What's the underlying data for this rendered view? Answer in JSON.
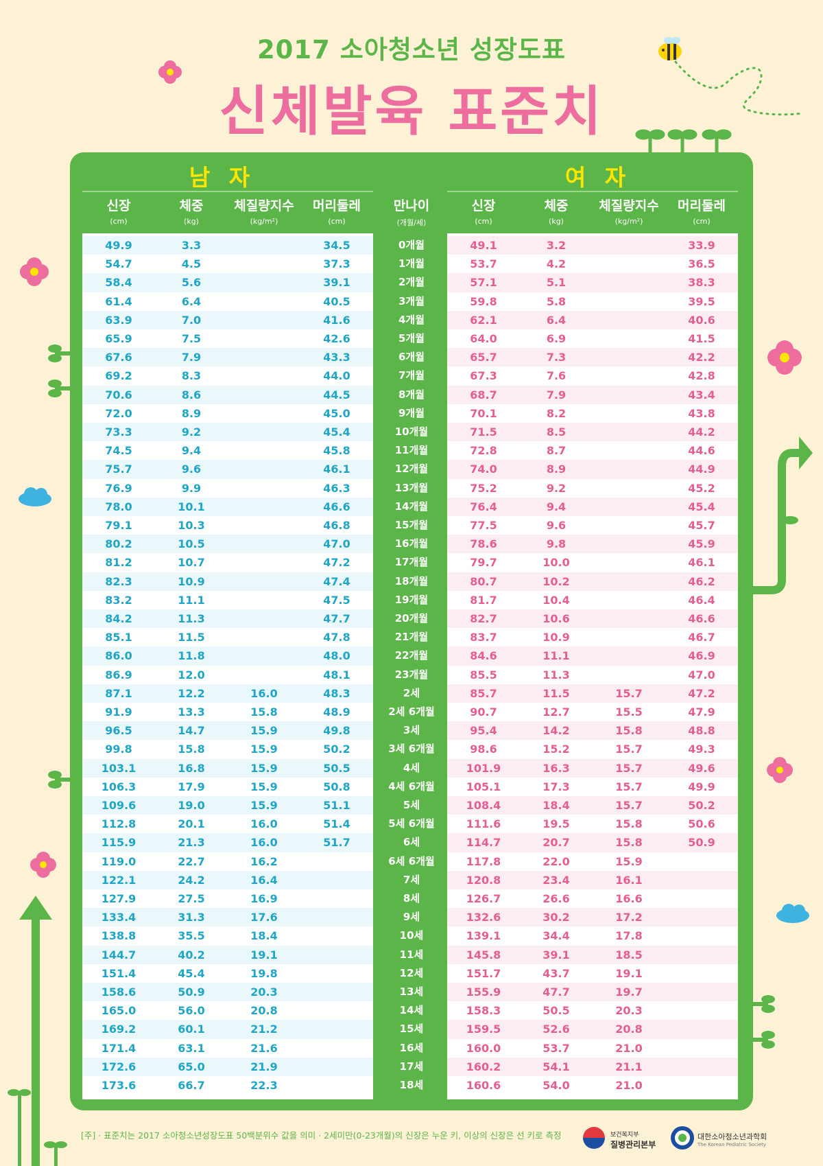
{
  "header": {
    "subtitle": "2017 소아청소년 성장도표",
    "title": "신체발육 표준치"
  },
  "sections": {
    "boys": "남 자",
    "girls": "여 자"
  },
  "columns": {
    "height": {
      "label": "신장",
      "unit": "(cm)"
    },
    "weight": {
      "label": "체중",
      "unit": "(kg)"
    },
    "bmi": {
      "label": "체질량지수",
      "unit": "(kg/m²)"
    },
    "head": {
      "label": "머리둘레",
      "unit": "(cm)"
    },
    "age": {
      "label": "만나이",
      "unit": "(개월/세)"
    }
  },
  "ages": [
    "0개월",
    "1개월",
    "2개월",
    "3개월",
    "4개월",
    "5개월",
    "6개월",
    "7개월",
    "8개월",
    "9개월",
    "10개월",
    "11개월",
    "12개월",
    "13개월",
    "14개월",
    "15개월",
    "16개월",
    "17개월",
    "18개월",
    "19개월",
    "20개월",
    "21개월",
    "22개월",
    "23개월",
    "2세",
    "2세 6개월",
    "3세",
    "3세 6개월",
    "4세",
    "4세 6개월",
    "5세",
    "5세 6개월",
    "6세",
    "6세 6개월",
    "7세",
    "8세",
    "9세",
    "10세",
    "11세",
    "12세",
    "13세",
    "14세",
    "15세",
    "16세",
    "17세",
    "18세"
  ],
  "boys": [
    [
      "49.9",
      "3.3",
      "",
      "34.5"
    ],
    [
      "54.7",
      "4.5",
      "",
      "37.3"
    ],
    [
      "58.4",
      "5.6",
      "",
      "39.1"
    ],
    [
      "61.4",
      "6.4",
      "",
      "40.5"
    ],
    [
      "63.9",
      "7.0",
      "",
      "41.6"
    ],
    [
      "65.9",
      "7.5",
      "",
      "42.6"
    ],
    [
      "67.6",
      "7.9",
      "",
      "43.3"
    ],
    [
      "69.2",
      "8.3",
      "",
      "44.0"
    ],
    [
      "70.6",
      "8.6",
      "",
      "44.5"
    ],
    [
      "72.0",
      "8.9",
      "",
      "45.0"
    ],
    [
      "73.3",
      "9.2",
      "",
      "45.4"
    ],
    [
      "74.5",
      "9.4",
      "",
      "45.8"
    ],
    [
      "75.7",
      "9.6",
      "",
      "46.1"
    ],
    [
      "76.9",
      "9.9",
      "",
      "46.3"
    ],
    [
      "78.0",
      "10.1",
      "",
      "46.6"
    ],
    [
      "79.1",
      "10.3",
      "",
      "46.8"
    ],
    [
      "80.2",
      "10.5",
      "",
      "47.0"
    ],
    [
      "81.2",
      "10.7",
      "",
      "47.2"
    ],
    [
      "82.3",
      "10.9",
      "",
      "47.4"
    ],
    [
      "83.2",
      "11.1",
      "",
      "47.5"
    ],
    [
      "84.2",
      "11.3",
      "",
      "47.7"
    ],
    [
      "85.1",
      "11.5",
      "",
      "47.8"
    ],
    [
      "86.0",
      "11.8",
      "",
      "48.0"
    ],
    [
      "86.9",
      "12.0",
      "",
      "48.1"
    ],
    [
      "87.1",
      "12.2",
      "16.0",
      "48.3"
    ],
    [
      "91.9",
      "13.3",
      "15.8",
      "48.9"
    ],
    [
      "96.5",
      "14.7",
      "15.9",
      "49.8"
    ],
    [
      "99.8",
      "15.8",
      "15.9",
      "50.2"
    ],
    [
      "103.1",
      "16.8",
      "15.9",
      "50.5"
    ],
    [
      "106.3",
      "17.9",
      "15.9",
      "50.8"
    ],
    [
      "109.6",
      "19.0",
      "15.9",
      "51.1"
    ],
    [
      "112.8",
      "20.1",
      "16.0",
      "51.4"
    ],
    [
      "115.9",
      "21.3",
      "16.0",
      "51.7"
    ],
    [
      "119.0",
      "22.7",
      "16.2",
      ""
    ],
    [
      "122.1",
      "24.2",
      "16.4",
      ""
    ],
    [
      "127.9",
      "27.5",
      "16.9",
      ""
    ],
    [
      "133.4",
      "31.3",
      "17.6",
      ""
    ],
    [
      "138.8",
      "35.5",
      "18.4",
      ""
    ],
    [
      "144.7",
      "40.2",
      "19.1",
      ""
    ],
    [
      "151.4",
      "45.4",
      "19.8",
      ""
    ],
    [
      "158.6",
      "50.9",
      "20.3",
      ""
    ],
    [
      "165.0",
      "56.0",
      "20.8",
      ""
    ],
    [
      "169.2",
      "60.1",
      "21.2",
      ""
    ],
    [
      "171.4",
      "63.1",
      "21.6",
      ""
    ],
    [
      "172.6",
      "65.0",
      "21.9",
      ""
    ],
    [
      "173.6",
      "66.7",
      "22.3",
      ""
    ]
  ],
  "girls": [
    [
      "49.1",
      "3.2",
      "",
      "33.9"
    ],
    [
      "53.7",
      "4.2",
      "",
      "36.5"
    ],
    [
      "57.1",
      "5.1",
      "",
      "38.3"
    ],
    [
      "59.8",
      "5.8",
      "",
      "39.5"
    ],
    [
      "62.1",
      "6.4",
      "",
      "40.6"
    ],
    [
      "64.0",
      "6.9",
      "",
      "41.5"
    ],
    [
      "65.7",
      "7.3",
      "",
      "42.2"
    ],
    [
      "67.3",
      "7.6",
      "",
      "42.8"
    ],
    [
      "68.7",
      "7.9",
      "",
      "43.4"
    ],
    [
      "70.1",
      "8.2",
      "",
      "43.8"
    ],
    [
      "71.5",
      "8.5",
      "",
      "44.2"
    ],
    [
      "72.8",
      "8.7",
      "",
      "44.6"
    ],
    [
      "74.0",
      "8.9",
      "",
      "44.9"
    ],
    [
      "75.2",
      "9.2",
      "",
      "45.2"
    ],
    [
      "76.4",
      "9.4",
      "",
      "45.4"
    ],
    [
      "77.5",
      "9.6",
      "",
      "45.7"
    ],
    [
      "78.6",
      "9.8",
      "",
      "45.9"
    ],
    [
      "79.7",
      "10.0",
      "",
      "46.1"
    ],
    [
      "80.7",
      "10.2",
      "",
      "46.2"
    ],
    [
      "81.7",
      "10.4",
      "",
      "46.4"
    ],
    [
      "82.7",
      "10.6",
      "",
      "46.6"
    ],
    [
      "83.7",
      "10.9",
      "",
      "46.7"
    ],
    [
      "84.6",
      "11.1",
      "",
      "46.9"
    ],
    [
      "85.5",
      "11.3",
      "",
      "47.0"
    ],
    [
      "85.7",
      "11.5",
      "15.7",
      "47.2"
    ],
    [
      "90.7",
      "12.7",
      "15.5",
      "47.9"
    ],
    [
      "95.4",
      "14.2",
      "15.8",
      "48.8"
    ],
    [
      "98.6",
      "15.2",
      "15.7",
      "49.3"
    ],
    [
      "101.9",
      "16.3",
      "15.7",
      "49.6"
    ],
    [
      "105.1",
      "17.3",
      "15.7",
      "49.9"
    ],
    [
      "108.4",
      "18.4",
      "15.7",
      "50.2"
    ],
    [
      "111.6",
      "19.5",
      "15.8",
      "50.6"
    ],
    [
      "114.7",
      "20.7",
      "15.8",
      "50.9"
    ],
    [
      "117.8",
      "22.0",
      "15.9",
      ""
    ],
    [
      "120.8",
      "23.4",
      "16.1",
      ""
    ],
    [
      "126.7",
      "26.6",
      "16.6",
      ""
    ],
    [
      "132.6",
      "30.2",
      "17.2",
      ""
    ],
    [
      "139.1",
      "34.4",
      "17.8",
      ""
    ],
    [
      "145.8",
      "39.1",
      "18.5",
      ""
    ],
    [
      "151.7",
      "43.7",
      "19.1",
      ""
    ],
    [
      "155.9",
      "47.7",
      "19.7",
      ""
    ],
    [
      "158.3",
      "50.5",
      "20.3",
      ""
    ],
    [
      "159.5",
      "52.6",
      "20.8",
      ""
    ],
    [
      "160.0",
      "53.7",
      "21.0",
      ""
    ],
    [
      "160.2",
      "54.1",
      "21.1",
      ""
    ],
    [
      "160.6",
      "54.0",
      "21.0",
      ""
    ]
  ],
  "footnote": "[주] · 표준치는 2017 소아청소년성장도표 50백분위수 값을 의미  · 2세미만(0-23개월)의 신장은 누운 키, 이상의 신장은 선 키로 측정",
  "logos": {
    "ministry_top": "보건복지부",
    "ministry_name": "질병관리본부",
    "society_name": "대한소아청소년과학회",
    "society_en": "The Korean Pediatric Society"
  },
  "colors": {
    "green": "#5cb548",
    "pink": "#ec6d9e",
    "boy_text": "#1fa6c7",
    "girl_text": "#e55e92",
    "background": "#fdf2d6",
    "section_title": "#ffe600"
  }
}
